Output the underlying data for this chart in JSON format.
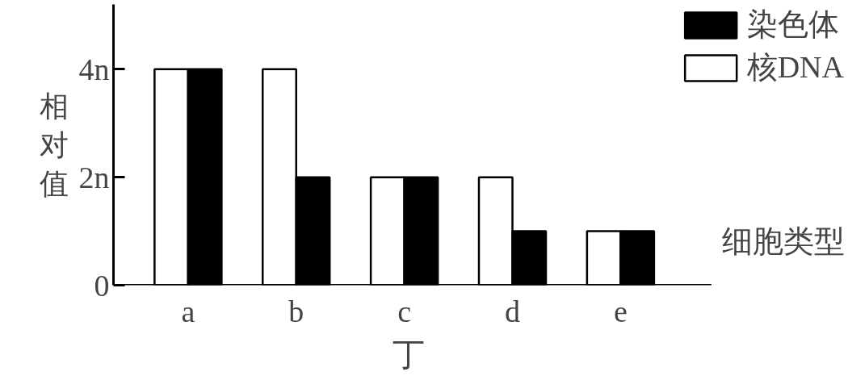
{
  "chart_data": {
    "type": "bar",
    "title": "丁",
    "xlabel": "细胞类型",
    "ylabel": "相对值",
    "categories": [
      "a",
      "b",
      "c",
      "d",
      "e"
    ],
    "series": [
      {
        "name": "核DNA",
        "color": "#ffffff",
        "values": [
          4,
          4,
          2,
          2,
          1
        ]
      },
      {
        "name": "染色体",
        "color": "#000000",
        "values": [
          4,
          2,
          2,
          1,
          1
        ]
      }
    ],
    "ylim": [
      0,
      5.2
    ],
    "yticks": [
      0,
      {
        "value": 2,
        "label": "2n"
      },
      {
        "value": 4,
        "label": "4n"
      }
    ],
    "grid": false,
    "legend": "top right"
  }
}
